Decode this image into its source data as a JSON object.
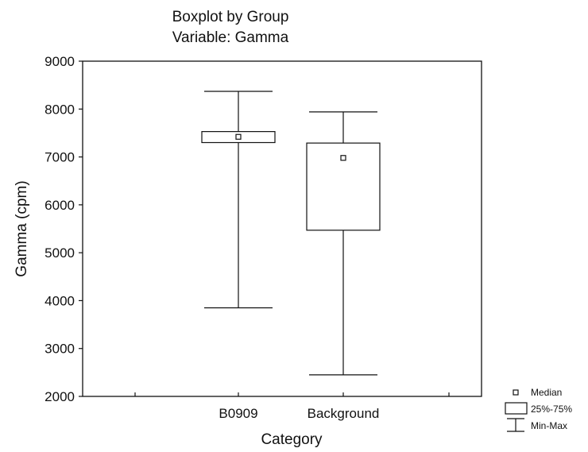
{
  "chart_data": {
    "type": "boxplot",
    "title": "Boxplot by Group",
    "subtitle": "Variable: Gamma",
    "xlabel": "Category",
    "ylabel": "Gamma (cpm)",
    "ylim": [
      2000,
      9000
    ],
    "yticks": [
      2000,
      3000,
      4000,
      5000,
      6000,
      7000,
      8000,
      9000
    ],
    "categories": [
      "B0909",
      "Background"
    ],
    "boxes": [
      {
        "category": "B0909",
        "min": 3850,
        "q1": 7300,
        "median": 7420,
        "q3": 7530,
        "max": 8370
      },
      {
        "category": "Background",
        "min": 2450,
        "q1": 5470,
        "median": 6980,
        "q3": 7290,
        "max": 7940
      }
    ],
    "legend": {
      "position": "bottom-right",
      "items": [
        "Median",
        "25%-75%",
        "Min-Max"
      ]
    },
    "colors": {
      "line": "#111111",
      "background": "#ffffff"
    }
  }
}
